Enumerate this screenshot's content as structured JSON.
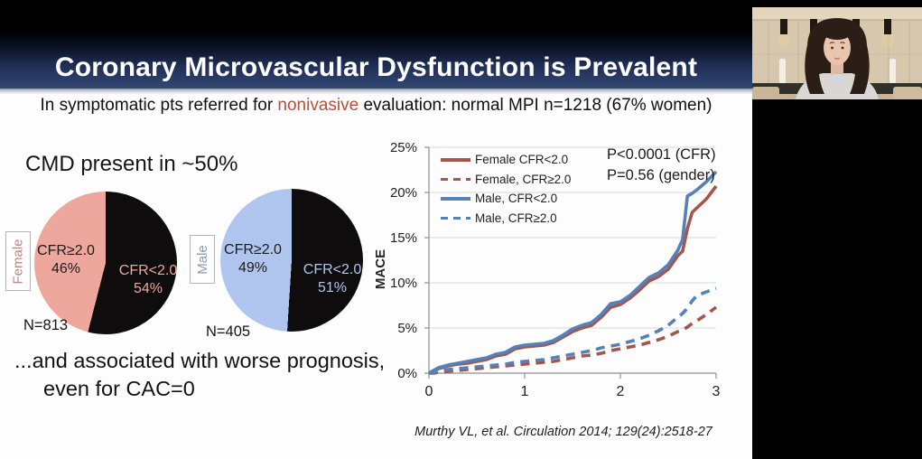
{
  "slide": {
    "title": "Coronary Microvascular Dysfunction is Prevalent",
    "subtitle": {
      "prefix": "In symptomatic pts referred for ",
      "highlight": "nonivasive",
      "suffix": " evaluation: normal MPI n=1218 (67% women)",
      "highlight_color": "#b5503a"
    },
    "cmd_text": "CMD present in ~50%",
    "prognosis_line1": "...and associated with worse prognosis,",
    "prognosis_line2": "even for CAC=0",
    "citation": "Murthy VL, et al. Circulation 2014; 129(24):2518-27"
  },
  "pies": [
    {
      "group": "Female",
      "group_color": "#c4837b",
      "n_label": "N=813",
      "slices": [
        {
          "label": "CFR<2.0",
          "pct": "54%",
          "value": 54,
          "color": "#0e0c0d",
          "text_color": "#eda79d"
        },
        {
          "label": "CFR≥2.0",
          "pct": "46%",
          "value": 46,
          "color": "#eda79d",
          "text_color": "#1c1c1c"
        }
      ]
    },
    {
      "group": "Male",
      "group_color": "#8d9aac",
      "n_label": "N=405",
      "slices": [
        {
          "label": "CFR<2.0",
          "pct": "51%",
          "value": 51,
          "color": "#0e0c0d",
          "text_color": "#b0c5ee"
        },
        {
          "label": "CFR≥2.0",
          "pct": "49%",
          "value": 49,
          "color": "#b0c5ee",
          "text_color": "#1c1c1c"
        }
      ]
    }
  ],
  "chart_data": {
    "type": "line",
    "ylabel": "MACE",
    "xlabel": "",
    "xlim": [
      0,
      3
    ],
    "ylim": [
      0,
      25
    ],
    "xticks": [
      0,
      1,
      2,
      3
    ],
    "yticks": [
      0,
      5,
      10,
      15,
      20,
      25
    ],
    "ytick_suffix": "%",
    "grid": "horizontal",
    "legend_position": "upper-left-inside",
    "annotations": [
      "P<0.0001 (CFR)",
      "P=0.56 (gender)"
    ],
    "x": [
      0,
      0.05,
      0.1,
      0.2,
      0.3,
      0.4,
      0.5,
      0.6,
      0.7,
      0.8,
      0.9,
      1.0,
      1.1,
      1.2,
      1.3,
      1.4,
      1.5,
      1.6,
      1.7,
      1.8,
      1.9,
      2.0,
      2.1,
      2.2,
      2.3,
      2.4,
      2.5,
      2.6,
      2.65,
      2.7,
      2.75,
      2.8,
      2.9,
      3.0
    ],
    "series": [
      {
        "name": "Female CFR<2.0",
        "style": "solid",
        "color": "#a2564c",
        "values": [
          0,
          0.2,
          0.5,
          0.8,
          1.0,
          1.1,
          1.3,
          1.5,
          1.9,
          2.1,
          2.7,
          2.9,
          3.0,
          3.1,
          3.4,
          4.0,
          4.6,
          5.0,
          5.3,
          6.2,
          7.3,
          7.6,
          8.3,
          9.2,
          10.2,
          10.7,
          11.5,
          13.0,
          13.5,
          16.0,
          17.8,
          18.3,
          19.3,
          20.7
        ]
      },
      {
        "name": "Female, CFR≥2.0",
        "style": "dashed",
        "color": "#a2564c",
        "values": [
          0,
          0,
          0.1,
          0.2,
          0.3,
          0.4,
          0.5,
          0.6,
          0.7,
          0.8,
          0.9,
          1.0,
          1.1,
          1.2,
          1.3,
          1.5,
          1.7,
          1.9,
          2.0,
          2.2,
          2.5,
          2.7,
          2.9,
          3.1,
          3.4,
          3.7,
          4.1,
          4.6,
          4.8,
          5.1,
          5.5,
          5.8,
          6.5,
          7.3
        ]
      },
      {
        "name": "Male, CFR<2.0",
        "style": "solid",
        "color": "#5580b8",
        "values": [
          0,
          0.3,
          0.6,
          0.9,
          1.1,
          1.3,
          1.5,
          1.7,
          2.1,
          2.3,
          2.9,
          3.1,
          3.2,
          3.3,
          3.6,
          4.2,
          4.9,
          5.3,
          5.6,
          6.5,
          7.7,
          7.9,
          8.6,
          9.6,
          10.6,
          11.1,
          12.0,
          13.6,
          14.8,
          19.6,
          19.9,
          20.3,
          21.2,
          22.3
        ]
      },
      {
        "name": "Male, CFR≥2.0",
        "style": "dashed",
        "color": "#5580b8",
        "values": [
          0,
          0.1,
          0.2,
          0.4,
          0.5,
          0.6,
          0.7,
          0.8,
          0.9,
          1.0,
          1.2,
          1.3,
          1.4,
          1.5,
          1.7,
          1.9,
          2.1,
          2.3,
          2.5,
          2.8,
          3.0,
          3.2,
          3.5,
          3.8,
          4.2,
          4.7,
          5.3,
          6.2,
          6.6,
          7.2,
          8.0,
          8.6,
          9.0,
          9.4
        ]
      }
    ]
  }
}
